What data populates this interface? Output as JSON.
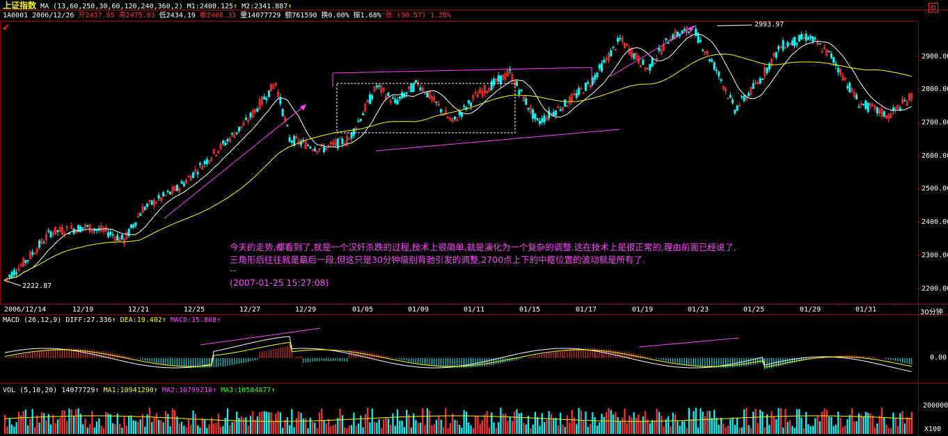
{
  "header": {
    "index_name": "上证指数",
    "ma_label": "MA (13,60,250,30,60,120,240,360,2)",
    "m1": "M1:2400.125",
    "m2": "M2:2341.887",
    "up_arrow": "↑",
    "code": "1A0001",
    "date": "2006/12/26",
    "open": "开2437.85",
    "high": "高2475.03",
    "low": "低2434.19",
    "close": "收2466.33",
    "volume": "量14077729",
    "amount": "额761590",
    "turnover": "换0.00%",
    "amplitude": "振1.68%",
    "change": "张 (30.57) 1.26%"
  },
  "main_chart": {
    "y_ticks": [
      "2900.00",
      "2800.00",
      "2700.00",
      "2600.00",
      "2500.00",
      "2400.00",
      "2300.00",
      "2200.00"
    ],
    "x_ticks": [
      "2006/12/14",
      "12/19",
      "12/21",
      "12/25",
      "12/27",
      "12/29",
      "01/05",
      "01/09",
      "01/11",
      "01/15",
      "01/17",
      "01/19",
      "01/23",
      "01/25",
      "01/29",
      "01/31"
    ],
    "period": "30分钟",
    "high_label": "2993.97",
    "low_label": "2222.87"
  },
  "annotation": {
    "line1": "今天的走势,都看到了,就是一个汉奸杀跌的过程,技术上很简单,就是演化为一个复杂的调整.这在技术上是很正常的,理由前面已经说了,",
    "line2": "三角形后往往就是最后一段,但这只是30分钟级别背驰引发的调整,2700点上下的中枢位置的波动就是所有了.",
    "line3": "--",
    "line4": "(2007-01-25 15:27:08)"
  },
  "macd": {
    "label": "MACD (26,12,9)",
    "diff": "DIFF:27.336",
    "dea": "DEA:19.402",
    "macd": "MACD:15.868",
    "zero_tick": "0.00"
  },
  "vol": {
    "label": "VOL (5,10,20)",
    "value": "14077729",
    "ma1": "MA1:10941290",
    "ma2": "MA2:10799210",
    "ma3": "MA3:10584877",
    "tick": "200000",
    "unit": "X100"
  },
  "colors": {
    "up": "#ff3333",
    "down": "#00ffff",
    "ma_white": "#ffffff",
    "ma_yellow": "#ffff00",
    "pink": "#ff44ff",
    "grid": "#8b0000"
  }
}
